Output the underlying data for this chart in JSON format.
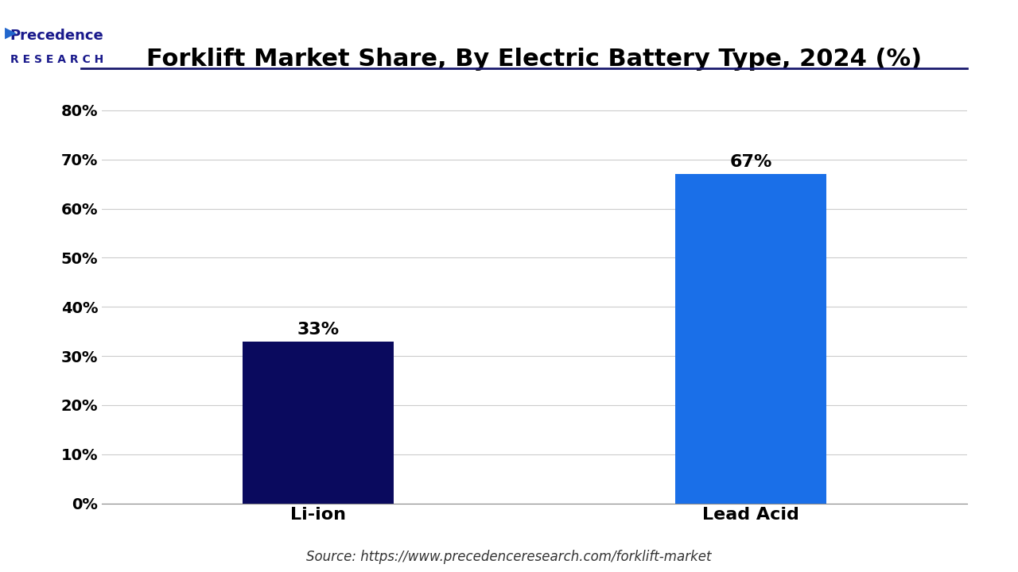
{
  "title": "Forklift Market Share, By Electric Battery Type, 2024 (%)",
  "categories": [
    "Li-ion",
    "Lead Acid"
  ],
  "values": [
    33,
    67
  ],
  "bar_colors": [
    "#0a0a5e",
    "#1a6fe8"
  ],
  "bar_labels": [
    "33%",
    "67%"
  ],
  "yticks": [
    0,
    10,
    20,
    30,
    40,
    50,
    60,
    70,
    80
  ],
  "ytick_labels": [
    "0%",
    "10%",
    "20%",
    "30%",
    "40%",
    "50%",
    "60%",
    "70%",
    "80%"
  ],
  "ylim": [
    0,
    85
  ],
  "source_text": "Source: https://www.precedenceresearch.com/forklift-market",
  "title_fontsize": 22,
  "tick_fontsize": 14,
  "label_fontsize": 16,
  "source_fontsize": 12,
  "background_color": "#ffffff",
  "grid_color": "#cccccc",
  "bar_width": 0.35,
  "logo_text_line1": "Precedence",
  "logo_text_line2": "RESEARCH"
}
